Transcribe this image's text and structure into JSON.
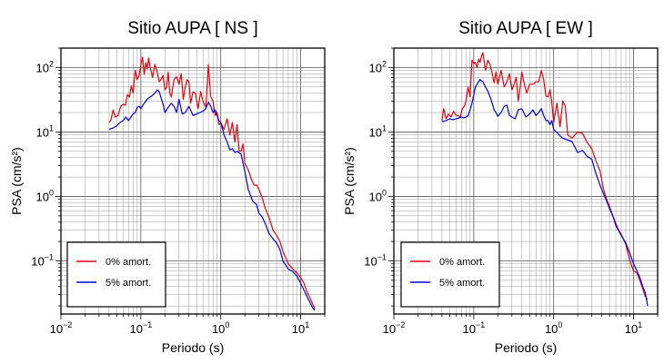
{
  "chart_data": [
    {
      "type": "line",
      "title": "Sitio AUPA [ NS ]",
      "xlabel": "Periodo (s)",
      "ylabel": "PSA (cm/s²)",
      "xscale": "log",
      "yscale": "log",
      "xlim": [
        0.01,
        20
      ],
      "ylim": [
        0.015,
        200
      ],
      "grid": true,
      "legend": "bottom-left",
      "x_ticks": [
        0.01,
        0.1,
        1,
        10
      ],
      "y_ticks": [
        0.1,
        1,
        10,
        100
      ],
      "x_tick_labels": [
        {
          "base": "10",
          "exp": "−2"
        },
        {
          "base": "10",
          "exp": "−1"
        },
        {
          "base": "10",
          "exp": "0"
        },
        {
          "base": "10",
          "exp": "1"
        }
      ],
      "y_tick_labels": [
        {
          "base": "10",
          "exp": "−1"
        },
        {
          "base": "10",
          "exp": "0"
        },
        {
          "base": "10",
          "exp": "1"
        },
        {
          "base": "10",
          "exp": "2"
        }
      ],
      "series": [
        {
          "name": "0% amort.",
          "color": "#e8000b",
          "x": [
            0.04,
            0.042,
            0.045,
            0.048,
            0.052,
            0.056,
            0.06,
            0.064,
            0.068,
            0.072,
            0.076,
            0.08,
            0.085,
            0.09,
            0.095,
            0.1,
            0.105,
            0.11,
            0.115,
            0.12,
            0.125,
            0.13,
            0.14,
            0.15,
            0.16,
            0.17,
            0.18,
            0.19,
            0.2,
            0.21,
            0.22,
            0.23,
            0.24,
            0.26,
            0.28,
            0.3,
            0.32,
            0.34,
            0.36,
            0.38,
            0.4,
            0.42,
            0.45,
            0.48,
            0.52,
            0.56,
            0.6,
            0.65,
            0.7,
            0.75,
            0.8,
            0.85,
            0.9,
            0.95,
            1.0,
            1.1,
            1.2,
            1.3,
            1.4,
            1.5,
            1.6,
            1.7,
            1.8,
            1.9,
            2.0,
            2.2,
            2.4,
            2.6,
            2.8,
            3.0,
            3.3,
            3.6,
            4.0,
            4.5,
            5.0,
            5.5,
            6.0,
            7.0,
            8.0,
            9.0,
            10.0,
            11.0,
            12.0,
            13.0,
            14.0,
            15.0
          ],
          "y": [
            14,
            15,
            22,
            17,
            18,
            25,
            27,
            26,
            38,
            35,
            52,
            40,
            90,
            65,
            75,
            110,
            145,
            78,
            120,
            95,
            140,
            105,
            70,
            112,
            85,
            60,
            66,
            75,
            45,
            50,
            85,
            40,
            35,
            65,
            72,
            55,
            80,
            32,
            50,
            65,
            60,
            28,
            42,
            40,
            23,
            42,
            30,
            24,
            110,
            35,
            30,
            18,
            20,
            13,
            14,
            11,
            16,
            9,
            14,
            7,
            13,
            5,
            5,
            6.5,
            3.3,
            2.6,
            1.9,
            1.5,
            1.5,
            1.3,
            0.95,
            0.65,
            0.48,
            0.3,
            0.25,
            0.2,
            0.14,
            0.09,
            0.075,
            0.065,
            0.055,
            0.045,
            0.033,
            0.027,
            0.022,
            0.018
          ]
        },
        {
          "name": "5% amort.",
          "color": "#0000e6",
          "x": [
            0.04,
            0.045,
            0.05,
            0.055,
            0.06,
            0.065,
            0.07,
            0.075,
            0.08,
            0.085,
            0.09,
            0.095,
            0.1,
            0.11,
            0.12,
            0.13,
            0.14,
            0.15,
            0.16,
            0.17,
            0.18,
            0.19,
            0.2,
            0.22,
            0.24,
            0.26,
            0.28,
            0.3,
            0.33,
            0.36,
            0.4,
            0.45,
            0.5,
            0.55,
            0.6,
            0.65,
            0.7,
            0.75,
            0.8,
            0.85,
            0.9,
            0.95,
            1.0,
            1.1,
            1.2,
            1.3,
            1.4,
            1.5,
            1.6,
            1.8,
            2.0,
            2.2,
            2.5,
            2.8,
            3.0,
            3.3,
            3.6,
            4.0,
            4.5,
            5.0,
            5.5,
            6.0,
            7.0,
            8.0,
            9.0,
            10.0,
            11.0,
            12.0,
            13.0,
            14.0,
            15.0
          ],
          "y": [
            11,
            11.5,
            12.5,
            14,
            15,
            17,
            15,
            17,
            19,
            20,
            24,
            25,
            23,
            28,
            32,
            35,
            37,
            40,
            45,
            42,
            33,
            27,
            20,
            24,
            28,
            25,
            20,
            32,
            19,
            20,
            25,
            18,
            19,
            20,
            21,
            23,
            29,
            25,
            20,
            22,
            18,
            15,
            14,
            9,
            7,
            5.3,
            5.5,
            4.8,
            5,
            4.5,
            2.5,
            1.3,
            0.85,
            0.75,
            0.55,
            0.48,
            0.38,
            0.27,
            0.22,
            0.19,
            0.15,
            0.1,
            0.075,
            0.068,
            0.058,
            0.045,
            0.035,
            0.028,
            0.023,
            0.019,
            0.017
          ]
        }
      ]
    },
    {
      "type": "line",
      "title": "Sitio AUPA [ EW ]",
      "xlabel": "Periodo (s)",
      "ylabel": "PSA (cm/s²)",
      "xscale": "log",
      "yscale": "log",
      "xlim": [
        0.01,
        20
      ],
      "ylim": [
        0.015,
        200
      ],
      "grid": true,
      "legend": "bottom-left",
      "x_ticks": [
        0.01,
        0.1,
        1,
        10
      ],
      "y_ticks": [
        0.1,
        1,
        10,
        100
      ],
      "x_tick_labels": [
        {
          "base": "10",
          "exp": "−2"
        },
        {
          "base": "10",
          "exp": "−1"
        },
        {
          "base": "10",
          "exp": "0"
        },
        {
          "base": "10",
          "exp": "1"
        }
      ],
      "y_tick_labels": [
        {
          "base": "10",
          "exp": "−1"
        },
        {
          "base": "10",
          "exp": "0"
        },
        {
          "base": "10",
          "exp": "1"
        },
        {
          "base": "10",
          "exp": "2"
        }
      ],
      "series": [
        {
          "name": "0% amort.",
          "color": "#e8000b",
          "x": [
            0.04,
            0.042,
            0.045,
            0.048,
            0.052,
            0.056,
            0.06,
            0.064,
            0.068,
            0.072,
            0.076,
            0.08,
            0.085,
            0.09,
            0.095,
            0.1,
            0.105,
            0.11,
            0.115,
            0.12,
            0.125,
            0.13,
            0.14,
            0.15,
            0.16,
            0.17,
            0.18,
            0.19,
            0.2,
            0.22,
            0.24,
            0.26,
            0.28,
            0.3,
            0.32,
            0.34,
            0.36,
            0.38,
            0.4,
            0.43,
            0.46,
            0.5,
            0.55,
            0.6,
            0.65,
            0.7,
            0.75,
            0.8,
            0.85,
            0.9,
            0.95,
            1.0,
            1.1,
            1.2,
            1.3,
            1.4,
            1.5,
            1.7,
            2.0,
            2.3,
            2.6,
            3.0,
            3.4,
            3.8,
            4.2,
            4.6,
            5.0,
            5.5,
            6.0,
            6.5,
            7.0,
            8.0,
            9.0,
            10.0,
            11.0,
            12.0,
            13.0,
            14.0,
            15.0
          ],
          "y": [
            15,
            23,
            16,
            19,
            17,
            21,
            18,
            18,
            17,
            23,
            25,
            30,
            50,
            35,
            130,
            115,
            120,
            100,
            135,
            120,
            150,
            170,
            90,
            130,
            110,
            80,
            58,
            85,
            55,
            90,
            50,
            60,
            80,
            45,
            55,
            70,
            30,
            48,
            85,
            55,
            40,
            55,
            55,
            60,
            60,
            90,
            65,
            36,
            35,
            45,
            28,
            14,
            28,
            12,
            30,
            25,
            9,
            8,
            10,
            9.5,
            7,
            5.5,
            3.5,
            2.5,
            1.3,
            0.9,
            0.7,
            0.5,
            0.38,
            0.3,
            0.26,
            0.18,
            0.1,
            0.07,
            0.065,
            0.05,
            0.037,
            0.028,
            0.025
          ]
        },
        {
          "name": "5% amort.",
          "color": "#0000e6",
          "x": [
            0.04,
            0.045,
            0.05,
            0.055,
            0.06,
            0.065,
            0.07,
            0.075,
            0.08,
            0.085,
            0.09,
            0.095,
            0.1,
            0.105,
            0.11,
            0.12,
            0.13,
            0.14,
            0.15,
            0.16,
            0.17,
            0.18,
            0.19,
            0.2,
            0.22,
            0.24,
            0.26,
            0.28,
            0.3,
            0.33,
            0.36,
            0.4,
            0.45,
            0.5,
            0.55,
            0.6,
            0.65,
            0.7,
            0.75,
            0.8,
            0.85,
            0.9,
            0.95,
            1.0,
            1.1,
            1.2,
            1.3,
            1.5,
            1.7,
            2.0,
            2.3,
            2.6,
            3.0,
            3.4,
            3.8,
            4.2,
            4.6,
            5.0,
            5.5,
            6.0,
            7.0,
            8.0,
            9.0,
            10.0,
            11.0,
            12.0,
            13.0,
            14.0,
            15.0
          ],
          "y": [
            14.5,
            15,
            16,
            15.5,
            16,
            16.5,
            17,
            16.5,
            17,
            18,
            22,
            28,
            38,
            50,
            55,
            65,
            60,
            50,
            43,
            35,
            28,
            22,
            20,
            17.5,
            20,
            25,
            26,
            18,
            17,
            16,
            22,
            23,
            17,
            19,
            22,
            18,
            20,
            23,
            18,
            15,
            15,
            13,
            15,
            11,
            9.8,
            8.7,
            8,
            7.5,
            7.1,
            4.8,
            5.2,
            4.2,
            3.8,
            2.2,
            1.5,
            1.1,
            0.85,
            0.65,
            0.5,
            0.35,
            0.25,
            0.19,
            0.13,
            0.09,
            0.07,
            0.055,
            0.04,
            0.032,
            0.02
          ]
        }
      ]
    }
  ]
}
